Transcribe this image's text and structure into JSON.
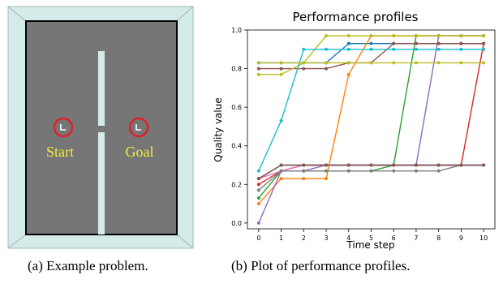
{
  "maze": {
    "start_label": "Start",
    "goal_label": "Goal",
    "colors": {
      "frame": "#d3ecea",
      "floor": "#767676",
      "wall": "#d3ecea",
      "border": "#000000",
      "marker": "#e0202a",
      "label": "#f2ee3a"
    }
  },
  "captions": {
    "a": "(a) Example problem.",
    "b": "(b) Plot of performance profiles."
  },
  "chart_data": {
    "type": "line",
    "title": "Performance profiles",
    "xlabel": "Time step",
    "ylabel": "Quality value",
    "xlim": [
      -0.5,
      10.5
    ],
    "ylim": [
      -0.03,
      1.0
    ],
    "xticks": [
      0,
      1,
      2,
      3,
      4,
      5,
      6,
      7,
      8,
      9,
      10
    ],
    "yticks": [
      "0.0",
      "0.2",
      "0.4",
      "0.6",
      "0.8",
      "1.0"
    ],
    "x": [
      0,
      1,
      2,
      3,
      4,
      5,
      6,
      7,
      8,
      9,
      10
    ],
    "series": [
      {
        "color": "#1f77b4",
        "values": [
          0.83,
          0.83,
          0.83,
          0.83,
          0.93,
          0.93,
          0.93,
          0.93,
          0.93,
          0.93,
          0.93
        ]
      },
      {
        "color": "#ff7f0e",
        "values": [
          0.1,
          0.23,
          0.23,
          0.23,
          0.77,
          0.97,
          0.97,
          0.97,
          0.97,
          0.97,
          0.97
        ]
      },
      {
        "color": "#2ca02c",
        "values": [
          0.13,
          0.27,
          0.27,
          0.27,
          0.27,
          0.27,
          0.3,
          0.97,
          0.97,
          0.97,
          0.97
        ]
      },
      {
        "color": "#d62728",
        "values": [
          0.2,
          0.27,
          0.3,
          0.3,
          0.3,
          0.3,
          0.3,
          0.3,
          0.3,
          0.3,
          0.93
        ]
      },
      {
        "color": "#9467bd",
        "values": [
          0.0,
          0.27,
          0.27,
          0.3,
          0.3,
          0.3,
          0.3,
          0.3,
          0.97,
          0.97,
          0.97
        ]
      },
      {
        "color": "#8c564b",
        "values": [
          0.8,
          0.8,
          0.8,
          0.8,
          0.83,
          0.83,
          0.93,
          0.93,
          0.93,
          0.93,
          0.93
        ]
      },
      {
        "color": "#e377c2",
        "values": [
          0.23,
          0.27,
          0.3,
          0.3,
          0.3,
          0.3,
          0.3,
          0.3,
          0.3,
          0.3,
          0.3
        ]
      },
      {
        "color": "#7f7f7f",
        "values": [
          0.17,
          0.27,
          0.27,
          0.27,
          0.27,
          0.27,
          0.27,
          0.27,
          0.27,
          0.3,
          0.3
        ]
      },
      {
        "color": "#bcbd22",
        "values": [
          0.77,
          0.77,
          0.83,
          0.97,
          0.97,
          0.97,
          0.97,
          0.97,
          0.97,
          0.97,
          0.97
        ]
      },
      {
        "color": "#17becf",
        "values": [
          0.27,
          0.53,
          0.9,
          0.9,
          0.9,
          0.9,
          0.9,
          0.9,
          0.9,
          0.9,
          0.9
        ]
      },
      {
        "color": "#1f77b4",
        "values": [
          0.23,
          0.3,
          0.3,
          0.3,
          0.3,
          0.3,
          0.3,
          0.3,
          0.3,
          0.3,
          0.3
        ]
      },
      {
        "color": "#bcbd22",
        "values": [
          0.83,
          0.83,
          0.83,
          0.83,
          0.83,
          0.83,
          0.83,
          0.83,
          0.83,
          0.83,
          0.83
        ]
      },
      {
        "color": "#8c564b",
        "values": [
          0.23,
          0.3,
          0.3,
          0.3,
          0.3,
          0.3,
          0.3,
          0.3,
          0.3,
          0.3,
          0.3
        ]
      }
    ]
  }
}
